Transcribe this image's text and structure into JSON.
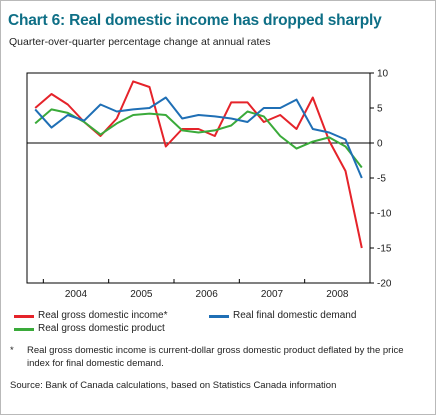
{
  "chart_data": {
    "type": "line",
    "title": "Chart 6: Real domestic income has dropped sharply",
    "subtitle": "Quarter-over-quarter percentage change at annual rates",
    "x_quarters": [
      "2003Q4",
      "2004Q1",
      "2004Q2",
      "2004Q3",
      "2004Q4",
      "2005Q1",
      "2005Q2",
      "2005Q3",
      "2005Q4",
      "2006Q1",
      "2006Q2",
      "2006Q3",
      "2006Q4",
      "2007Q1",
      "2007Q2",
      "2007Q3",
      "2007Q4",
      "2008Q1",
      "2008Q2",
      "2008Q3",
      "2008Q4"
    ],
    "xtick_labels": [
      "2004",
      "2005",
      "2006",
      "2007",
      "2008"
    ],
    "ytick_labels": [
      "10",
      "5",
      "0",
      "-5",
      "-10",
      "-15",
      "-20"
    ],
    "ylim": [
      -20,
      10
    ],
    "y_axis_side": "right",
    "series": [
      {
        "name": "Real gross domestic income*",
        "color": "#e5232a",
        "values": [
          5.0,
          7.0,
          5.5,
          3.0,
          1.0,
          3.5,
          8.8,
          8.0,
          -0.5,
          2.0,
          2.0,
          1.0,
          5.8,
          5.8,
          3.0,
          4.0,
          2.0,
          6.5,
          0.3,
          -4.0,
          -15.0
        ]
      },
      {
        "name": "Real gross domestic product",
        "color": "#3aaa3a",
        "values": [
          2.8,
          4.8,
          4.3,
          3.0,
          1.2,
          2.8,
          4.0,
          4.2,
          4.0,
          1.8,
          1.5,
          1.8,
          2.5,
          4.5,
          3.8,
          1.0,
          -0.8,
          0.2,
          0.8,
          -0.5,
          -3.5
        ]
      },
      {
        "name": "Real final domestic demand",
        "color": "#1f6fb5",
        "values": [
          4.8,
          2.2,
          4.0,
          3.2,
          5.5,
          4.5,
          4.8,
          5.0,
          6.5,
          3.5,
          4.0,
          3.8,
          3.5,
          3.0,
          5.0,
          5.0,
          6.2,
          2.0,
          1.5,
          0.5,
          -5.0
        ]
      }
    ],
    "legend_position": "bottom",
    "grid": false
  },
  "footnote": {
    "marker": "*",
    "text": "Real gross domestic income is current-dollar gross domestic product deflated by the price index for final domestic demand."
  },
  "source": "Source: Bank of Canada calculations, based on Statistics Canada information"
}
